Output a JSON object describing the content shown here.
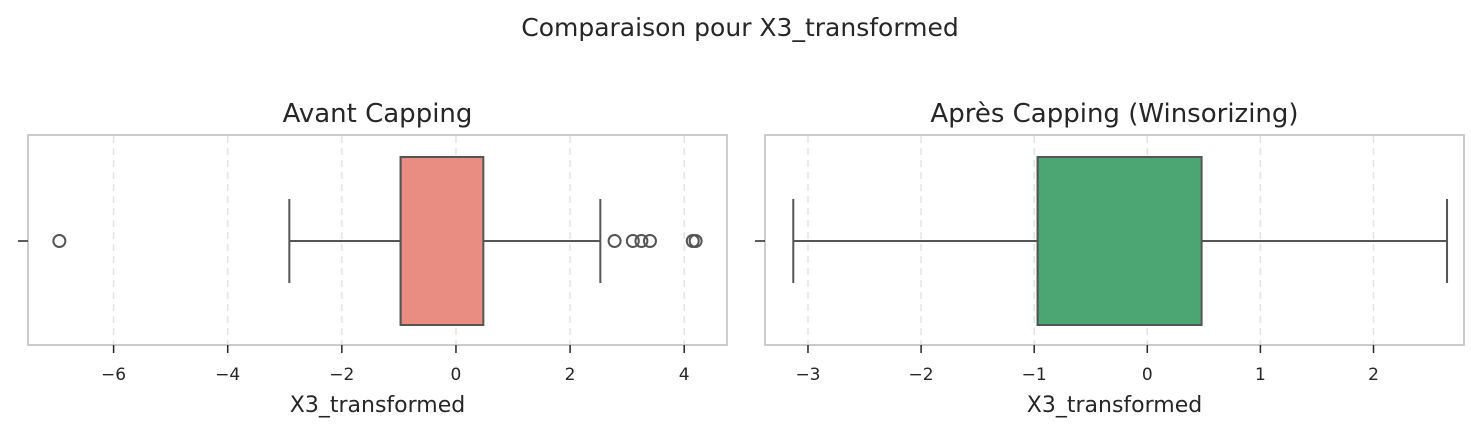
{
  "chart_data": {
    "title": "Comparaison pour X3_transformed",
    "panels": [
      {
        "type": "boxplot",
        "title": "Avant Capping",
        "xlabel": "X3_transformed",
        "xlim": [
          -7.5,
          4.75
        ],
        "xticks": [
          -6,
          -4,
          -2,
          0,
          2,
          4
        ],
        "xtick_labels": [
          "−6",
          "−4",
          "−2",
          "0",
          "2",
          "4"
        ],
        "color": "#e98d83",
        "whisker_low": -2.92,
        "q1": -0.97,
        "median": -0.97,
        "q3": 0.48,
        "whisker_high": 2.53,
        "outliers": [
          -6.95,
          2.78,
          3.1,
          3.25,
          3.4,
          4.15,
          4.2
        ]
      },
      {
        "type": "boxplot",
        "title": "Après Capping (Winsorizing)",
        "xlabel": "X3_transformed",
        "xlim": [
          -3.38,
          2.8
        ],
        "xticks": [
          -3,
          -2,
          -1,
          0,
          1,
          2
        ],
        "xtick_labels": [
          "−3",
          "−2",
          "−1",
          "0",
          "1",
          "2"
        ],
        "color": "#4ca674",
        "whisker_low": -3.13,
        "q1": -0.97,
        "median": -0.97,
        "q3": 0.48,
        "whisker_high": 2.65,
        "outliers": []
      }
    ]
  }
}
